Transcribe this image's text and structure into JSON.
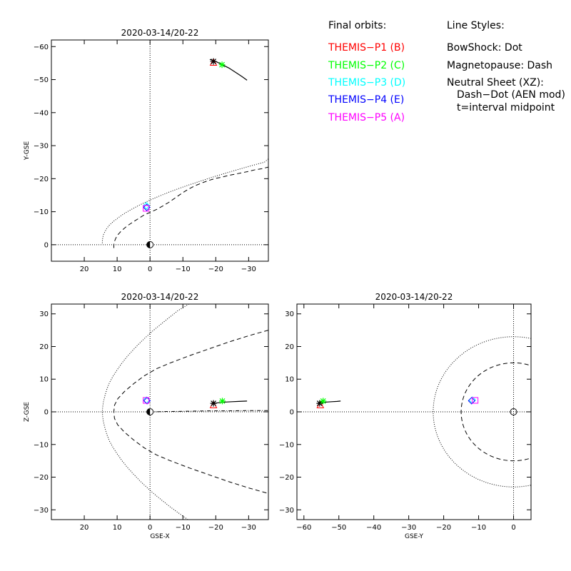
{
  "legend": {
    "final_orbits_title": "Final orbits:",
    "probes": [
      {
        "label": "THEMIS−P1 (B)",
        "color": "#ff0000"
      },
      {
        "label": "THEMIS−P2 (C)",
        "color": "#00ff00"
      },
      {
        "label": "THEMIS−P3 (D)",
        "color": "#00ffff"
      },
      {
        "label": "THEMIS−P4 (E)",
        "color": "#0000ff"
      },
      {
        "label": "THEMIS−P5 (A)",
        "color": "#ff00ff"
      }
    ],
    "line_styles_title": "Line Styles:",
    "line_styles": [
      "BowShock: Dot",
      "Magnetopause: Dash",
      "Neutral Sheet (XZ):",
      "Dash−Dot (AEN mod)",
      "t=interval midpoint"
    ]
  },
  "chart_data": [
    {
      "type": "line",
      "title": "2020-03-14/20-22",
      "xlabel": "",
      "ylabel": "Y-GSE",
      "xlim": [
        30,
        -36
      ],
      "ylim": [
        5,
        -62
      ],
      "xticks": [
        20,
        10,
        0,
        -10,
        -20,
        -30
      ],
      "xtick_labels": [
        "20",
        "10",
        "0",
        "−10",
        "−20",
        "−30"
      ],
      "yticks": [
        0,
        -10,
        -20,
        -30,
        -40,
        -50,
        -60
      ],
      "ytick_labels": [
        "0",
        "−10",
        "−20",
        "−30",
        "−40",
        "−50",
        "−60"
      ],
      "bow_shock": {
        "xs": [
          14.5,
          14.5,
          14.4,
          14.2,
          13.7,
          13.1,
          12.3,
          11.2,
          9.9,
          8.5,
          6.9,
          5.1,
          3.2,
          1.1,
          -1.1,
          -3.5,
          -6,
          -8.7,
          -11.5,
          -14.5,
          -17.6,
          -20.8,
          -24.1,
          -27.6,
          -31.1,
          -34.8,
          -36
        ],
        "ys": [
          -0.5,
          -1,
          -2,
          -3,
          -4,
          -5,
          -6,
          -7,
          -8,
          -9,
          -10,
          -11,
          -12,
          -13,
          -14,
          -15,
          -16,
          -17,
          -18,
          -19,
          -20,
          -21,
          -22,
          -23,
          -24,
          -25,
          -26
        ]
      },
      "magnetopause": {
        "xs": [
          11,
          11,
          10.8,
          10.4,
          9.8,
          8.9,
          7.8,
          6.5,
          5,
          3.4,
          1.8,
          0,
          -2,
          -4,
          -6,
          -8,
          -10,
          -12,
          -14,
          -16,
          -18,
          -20,
          -22,
          -24,
          -26,
          -28,
          -30,
          -32,
          -34,
          -36
        ],
        "ys": [
          1,
          0,
          -1,
          -2,
          -3,
          -4,
          -5,
          -6,
          -7,
          -8,
          -9,
          -9.8,
          -10.7,
          -11.8,
          -13,
          -14.4,
          -15.8,
          -17,
          -18,
          -18.8,
          -19.5,
          -20.1,
          -20.5,
          -21,
          -21.4,
          -21.8,
          -22.2,
          -22.7,
          -23,
          -23.5
        ]
      },
      "orbits": [
        {
          "name": "THEMIS-P1",
          "color": "#000000",
          "x": [
            -18.2,
            -20,
            -22,
            -24,
            -26,
            -28,
            -29.5
          ],
          "y": [
            -56.1,
            -55.5,
            -54.5,
            -53.5,
            -52.2,
            -50.9,
            -49.8
          ]
        }
      ],
      "markers": [
        {
          "name": "THEMIS-P1 (B)",
          "color": "#ff0000",
          "symbol": "triangle",
          "x": -19.3,
          "y": -55.3
        },
        {
          "name": "THEMIS-P1 (B)",
          "color": "#000000",
          "symbol": "asterisk",
          "x": -19.3,
          "y": -55.5
        },
        {
          "name": "THEMIS-P2 (C)",
          "color": "#00ff00",
          "symbol": "asterisk",
          "x": -21.9,
          "y": -54.5
        },
        {
          "name": "THEMIS-P3 (D)",
          "color": "#00ffff",
          "symbol": "diamond",
          "x": 1.1,
          "y": -11.8
        },
        {
          "name": "THEMIS-P4 (E)",
          "color": "#0000ff",
          "symbol": "diamond",
          "x": 1.0,
          "y": -11.3
        },
        {
          "name": "THEMIS-P5 (A)",
          "color": "#ff00ff",
          "symbol": "square",
          "x": 1.2,
          "y": -11.0
        },
        {
          "name": "Earth",
          "color": "#000000",
          "symbol": "earth",
          "x": 0,
          "y": 0
        }
      ]
    },
    {
      "type": "line",
      "title": "2020-03-14/20-22",
      "xlabel": "GSE-X",
      "ylabel": "Z-GSE",
      "xlim": [
        30,
        -36
      ],
      "ylim": [
        -33,
        33
      ],
      "xticks": [
        20,
        10,
        0,
        -10,
        -20,
        -30
      ],
      "xtick_labels": [
        "20",
        "10",
        "0",
        "−10",
        "−20",
        "−30"
      ],
      "yticks": [
        -30,
        -20,
        -10,
        0,
        10,
        20,
        30
      ],
      "ytick_labels": [
        "−30",
        "−20",
        "−10",
        "0",
        "10",
        "20",
        "30"
      ],
      "bow_shock": {
        "xs": [
          -13.5,
          -11,
          -8.5,
          -6,
          -3.5,
          -1.1,
          1.1,
          3.2,
          5.1,
          6.9,
          8.5,
          9.9,
          11.2,
          12.3,
          13.1,
          13.7,
          14.2,
          14.4,
          14.5,
          14.4,
          14.2,
          13.7,
          13.1,
          12.3,
          11.2,
          9.9,
          8.5,
          6.9,
          5.1,
          3.2,
          1.1,
          -1.1,
          -3.5,
          -6,
          -8.7,
          -11.5,
          -14.5
        ],
        "ys": [
          34,
          32.5,
          31,
          29,
          27,
          25,
          23,
          21,
          19,
          17,
          15,
          13,
          11,
          9,
          7,
          5,
          3,
          1.5,
          0,
          -1.5,
          -3,
          -5,
          -7,
          -9,
          -11,
          -13,
          -15,
          -17,
          -19,
          -21,
          -23,
          -25,
          -27,
          -29,
          -31,
          -33,
          -35
        ]
      },
      "magnetopause": {
        "xs": [
          -36,
          -30,
          -24,
          -18,
          -12,
          -6,
          -2,
          1.8,
          5,
          7.8,
          9.8,
          10.8,
          11,
          10.8,
          9.8,
          7.8,
          5,
          1.8,
          -2,
          -6,
          -12,
          -18,
          -24,
          -30,
          -36
        ],
        "ys": [
          25,
          23.3,
          21.4,
          19.3,
          17.2,
          14.9,
          13.2,
          11,
          8.6,
          6.2,
          4,
          2,
          0,
          -2,
          -4,
          -6.2,
          -8.6,
          -11,
          -13.2,
          -14.9,
          -17.2,
          -19.3,
          -21.4,
          -23.3,
          -25
        ]
      },
      "neutral_sheet": {
        "xs": [
          0,
          -6,
          -12,
          -18,
          -24,
          -30,
          -36
        ],
        "ys": [
          0,
          0.1,
          0.2,
          0.3,
          0.3,
          0.4,
          0.4
        ]
      },
      "orbits": [
        {
          "name": "THEMIS-P1",
          "color": "#000000",
          "x": [
            -19.3,
            -21,
            -23,
            -25,
            -27,
            -29.5
          ],
          "y": [
            2.6,
            2.8,
            3.0,
            3.1,
            3.2,
            3.3
          ]
        }
      ],
      "markers": [
        {
          "name": "THEMIS-P1 (B)",
          "color": "#ff0000",
          "symbol": "triangle",
          "x": -19.3,
          "y": 2.2
        },
        {
          "name": "THEMIS-P1 (B)",
          "color": "#000000",
          "symbol": "asterisk",
          "x": -19.3,
          "y": 2.6
        },
        {
          "name": "THEMIS-P2 (C)",
          "color": "#00ff00",
          "symbol": "asterisk",
          "x": -22.0,
          "y": 3.3
        },
        {
          "name": "THEMIS-P3 (D)",
          "color": "#00ffff",
          "symbol": "diamond",
          "x": 1.1,
          "y": 3.6
        },
        {
          "name": "THEMIS-P4 (E)",
          "color": "#0000ff",
          "symbol": "diamond",
          "x": 0.9,
          "y": 3.4
        },
        {
          "name": "THEMIS-P5 (A)",
          "color": "#ff00ff",
          "symbol": "square",
          "x": 1.2,
          "y": 3.5
        },
        {
          "name": "Earth",
          "color": "#000000",
          "symbol": "earth",
          "x": 0,
          "y": 0
        }
      ]
    },
    {
      "type": "line",
      "title": "2020-03-14/20-22",
      "xlabel": "GSE-Y",
      "ylabel": "",
      "xlim": [
        -62,
        5
      ],
      "ylim": [
        -33,
        33
      ],
      "xticks": [
        -60,
        -50,
        -40,
        -30,
        -20,
        -10,
        0
      ],
      "xtick_labels": [
        "−60",
        "−50",
        "−40",
        "−30",
        "−20",
        "−10",
        "0"
      ],
      "yticks": [
        -30,
        -20,
        -10,
        0,
        10,
        20,
        30
      ],
      "ytick_labels": [
        "−30",
        "−20",
        "−10",
        "0",
        "10",
        "20",
        "30"
      ],
      "bow_shock_circle": {
        "cx": 0,
        "cy": 0,
        "r": 23
      },
      "magnetopause_circle": {
        "cx": 0,
        "cy": 0,
        "r": 15
      },
      "orbits": [
        {
          "name": "THEMIS-P1",
          "color": "#000000",
          "x": [
            -56.1,
            -55,
            -53.5,
            -52,
            -50.5,
            -49.5
          ],
          "y": [
            2.6,
            2.8,
            3.0,
            3.1,
            3.2,
            3.3
          ]
        }
      ],
      "markers": [
        {
          "name": "THEMIS-P1 (B)",
          "color": "#ff0000",
          "symbol": "triangle",
          "x": -55.3,
          "y": 2.2
        },
        {
          "name": "THEMIS-P1 (B)",
          "color": "#000000",
          "symbol": "asterisk",
          "x": -55.5,
          "y": 2.6
        },
        {
          "name": "THEMIS-P2 (C)",
          "color": "#00ff00",
          "symbol": "asterisk",
          "x": -54.5,
          "y": 3.3
        },
        {
          "name": "THEMIS-P3 (D)",
          "color": "#00ffff",
          "symbol": "diamond",
          "x": -11.8,
          "y": 3.6
        },
        {
          "name": "THEMIS-P4 (E)",
          "color": "#0000ff",
          "symbol": "diamond",
          "x": -12.0,
          "y": 3.4
        },
        {
          "name": "THEMIS-P5 (A)",
          "color": "#ff00ff",
          "symbol": "square",
          "x": -11.0,
          "y": 3.5
        },
        {
          "name": "Earth",
          "color": "#000000",
          "symbol": "circle",
          "x": 0,
          "y": 0
        }
      ]
    }
  ]
}
